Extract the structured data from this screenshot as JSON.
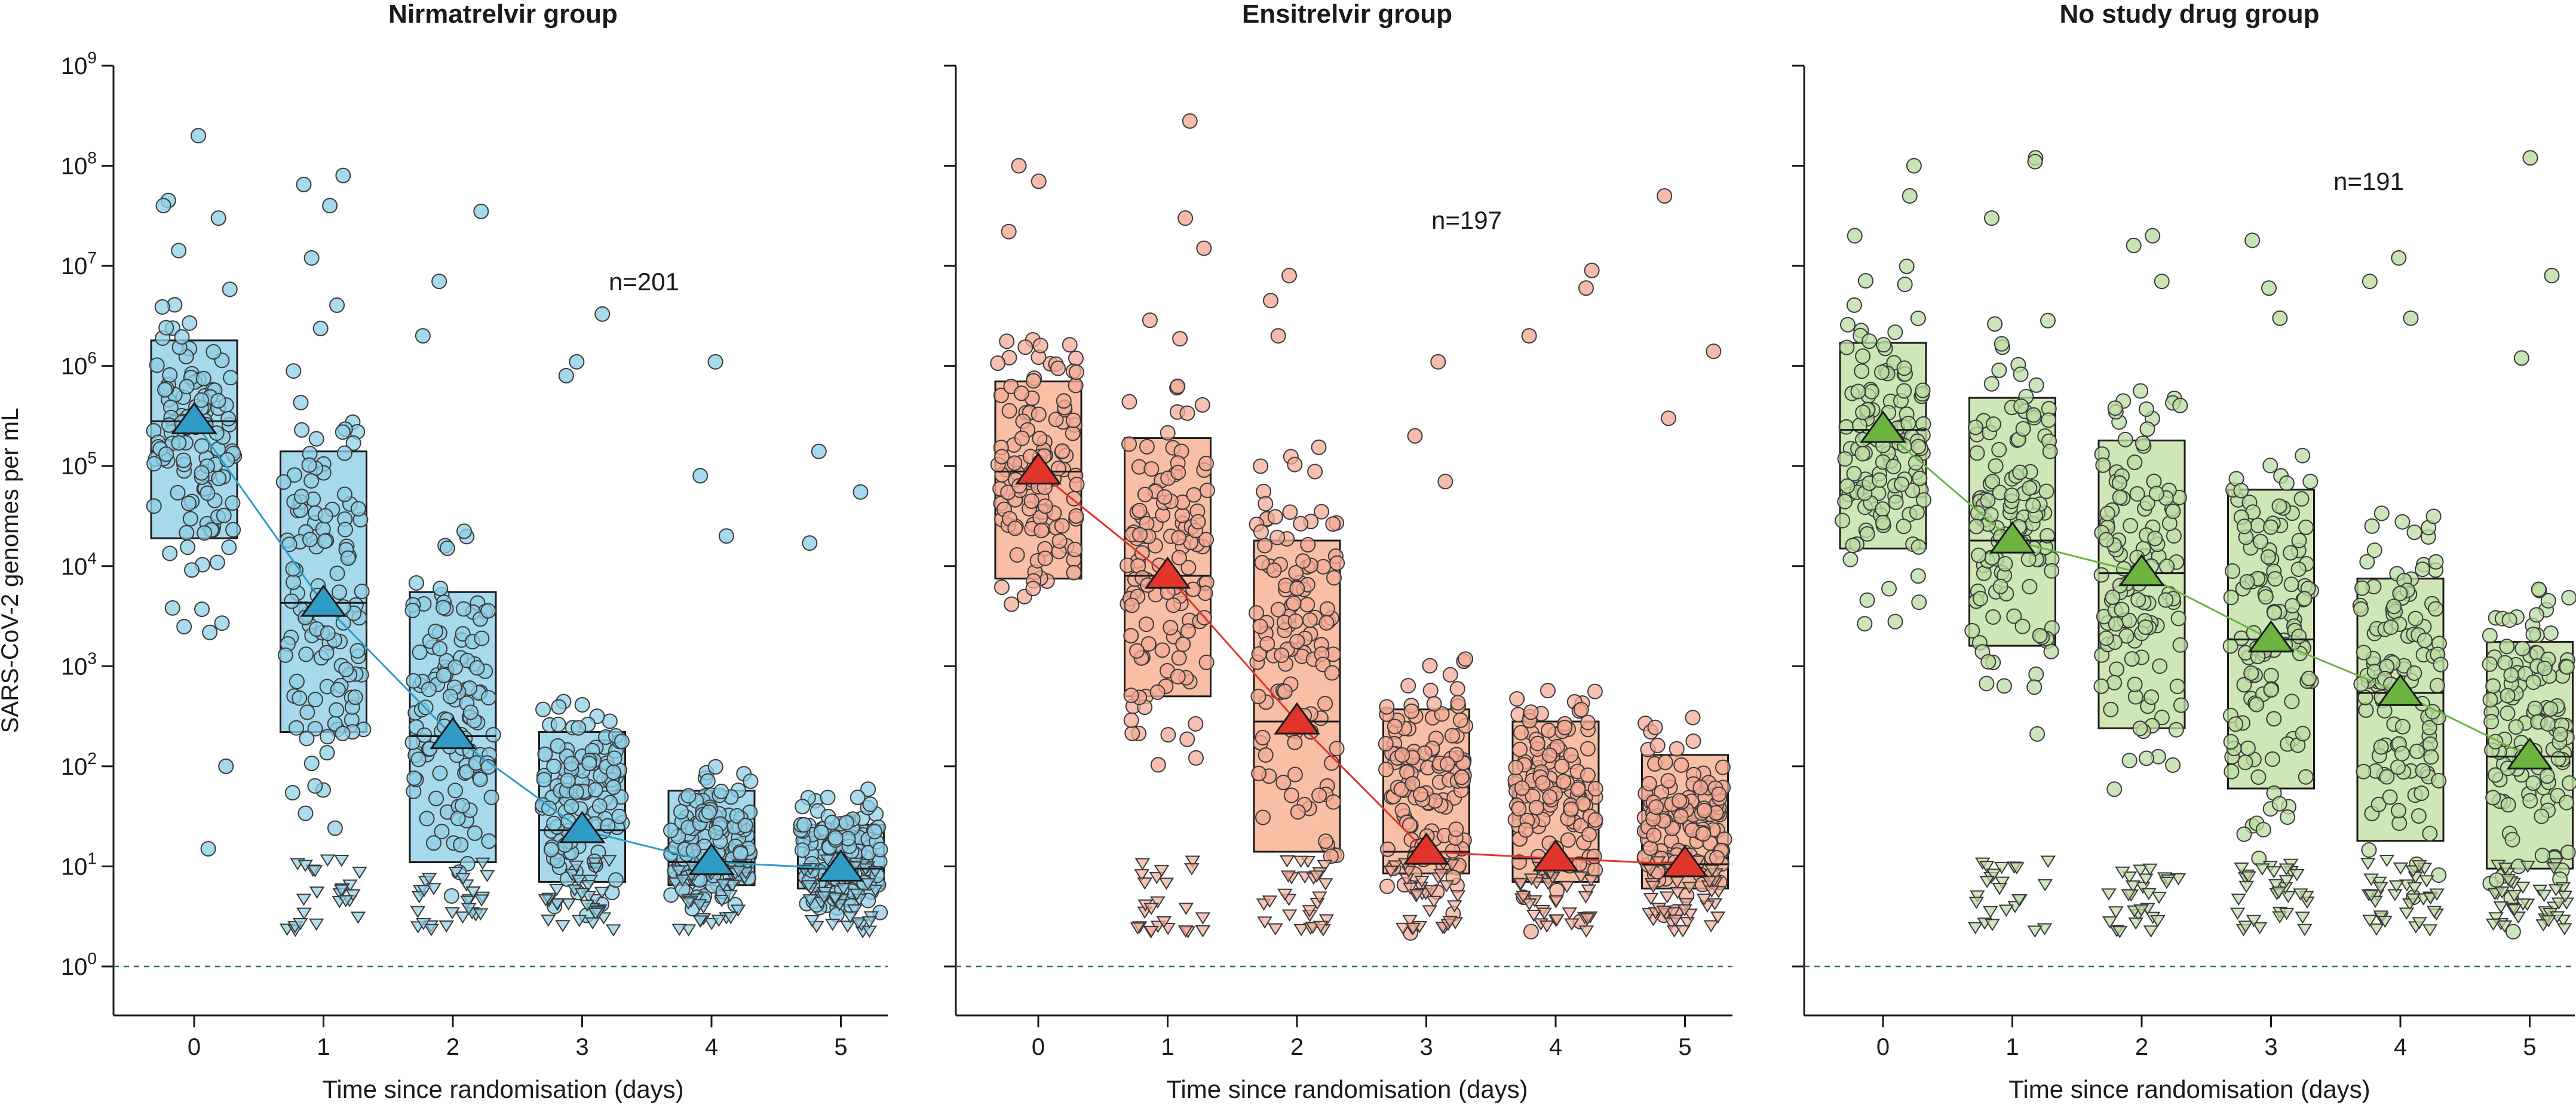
{
  "chart_data": {
    "type": "box",
    "ylabel": "SARS-CoV-2 genomes per mL",
    "yscale": "log10",
    "ylim": [
      1,
      1000000000
    ],
    "y_ticks": [
      {
        "base": "10",
        "exp": "0"
      },
      {
        "base": "10",
        "exp": "1"
      },
      {
        "base": "10",
        "exp": "2"
      },
      {
        "base": "10",
        "exp": "3"
      },
      {
        "base": "10",
        "exp": "4"
      },
      {
        "base": "10",
        "exp": "5"
      },
      {
        "base": "10",
        "exp": "6"
      },
      {
        "base": "10",
        "exp": "7"
      },
      {
        "base": "10",
        "exp": "8"
      },
      {
        "base": "10",
        "exp": "9"
      }
    ],
    "reference_line": 1,
    "xlabel": "Time since randomisation (days)",
    "categories": [
      "0",
      "1",
      "2",
      "3",
      "4",
      "5"
    ],
    "panels": [
      {
        "title": "Nirmatrelvir group",
        "n_label": "n=201",
        "fill": "#a6d9ec",
        "point_color": "#8fcfe6",
        "mean_color": "#2f9cc6",
        "line_color": "#2f9cc6",
        "boxes": [
          {
            "day": "0",
            "q1": 19000,
            "median": 280000,
            "q3": 1800000
          },
          {
            "day": "1",
            "q1": 220,
            "median": 4300,
            "q3": 140000
          },
          {
            "day": "2",
            "q1": 11,
            "median": 200,
            "q3": 5500
          },
          {
            "day": "3",
            "q1": 7,
            "median": 23,
            "q3": 220
          },
          {
            "day": "4",
            "q1": 6.5,
            "median": 11,
            "q3": 57
          },
          {
            "day": "5",
            "q1": 6,
            "median": 9.5,
            "q3": 26
          }
        ],
        "means": [
          280000,
          4200,
          200,
          23,
          11,
          9.5
        ],
        "outliers": [
          {
            "day": "0",
            "values": [
              200000000,
              45000000,
              40000000,
              30000000,
              100,
              15
            ]
          },
          {
            "day": "1",
            "values": [
              80000000,
              65000000,
              40000000,
              12000000
            ]
          },
          {
            "day": "2",
            "values": [
              35000000,
              7000000,
              2000000
            ]
          },
          {
            "day": "3",
            "values": [
              3300000,
              1100000,
              800000
            ]
          },
          {
            "day": "4",
            "values": [
              1100000,
              80000,
              20000
            ]
          },
          {
            "day": "5",
            "values": [
              140000,
              55000,
              17000
            ]
          }
        ]
      },
      {
        "title": "Ensitrelvir group",
        "n_label": "n=197",
        "fill": "#f8bfa5",
        "point_color": "#f4ab95",
        "mean_color": "#e1342a",
        "line_color": "#e1342a",
        "boxes": [
          {
            "day": "0",
            "q1": 7500,
            "median": 88000,
            "q3": 700000
          },
          {
            "day": "1",
            "q1": 500,
            "median": 8000,
            "q3": 190000
          },
          {
            "day": "2",
            "q1": 14,
            "median": 280,
            "q3": 18000
          },
          {
            "day": "3",
            "q1": 8.5,
            "median": 14,
            "q3": 370
          },
          {
            "day": "4",
            "q1": 7,
            "median": 12,
            "q3": 280
          },
          {
            "day": "5",
            "q1": 6,
            "median": 10.5,
            "q3": 130
          }
        ],
        "means": [
          88000,
          8000,
          280,
          14,
          12,
          10.5
        ],
        "outliers": [
          {
            "day": "0",
            "values": [
              100000000,
              70000000,
              22000000
            ]
          },
          {
            "day": "1",
            "values": [
              280000000,
              30000000,
              15000000
            ]
          },
          {
            "day": "2",
            "values": [
              8000000,
              4500000,
              2000000
            ]
          },
          {
            "day": "3",
            "values": [
              1100000,
              200000,
              70000
            ]
          },
          {
            "day": "4",
            "values": [
              9000000,
              6000000,
              2000000
            ]
          },
          {
            "day": "5",
            "values": [
              50000000,
              1400000,
              300000
            ]
          }
        ]
      },
      {
        "title": "No study drug group",
        "n_label": "n=191",
        "fill": "#cfe6b6",
        "point_color": "#bcdca3",
        "mean_color": "#6db33f",
        "line_color": "#6db33f",
        "boxes": [
          {
            "day": "0",
            "q1": 15000,
            "median": 230000,
            "q3": 1700000
          },
          {
            "day": "1",
            "q1": 1600,
            "median": 18000,
            "q3": 480000
          },
          {
            "day": "2",
            "q1": 240,
            "median": 8500,
            "q3": 180000
          },
          {
            "day": "3",
            "q1": 60,
            "median": 1850,
            "q3": 58000
          },
          {
            "day": "4",
            "q1": 18,
            "median": 540,
            "q3": 7500
          },
          {
            "day": "5",
            "q1": 9.5,
            "median": 125,
            "q3": 1750
          }
        ],
        "means": [
          230000,
          18000,
          8500,
          1850,
          540,
          125
        ],
        "outliers": [
          {
            "day": "0",
            "values": [
              100000000,
              50000000,
              20000000
            ]
          },
          {
            "day": "1",
            "values": [
              120000000,
              110000000,
              30000000
            ]
          },
          {
            "day": "2",
            "values": [
              20000000,
              16000000,
              7000000
            ]
          },
          {
            "day": "3",
            "values": [
              18000000,
              6000000,
              3000000
            ]
          },
          {
            "day": "4",
            "values": [
              12000000,
              7000000,
              3000000
            ]
          },
          {
            "day": "5",
            "values": [
              120000000,
              8000000,
              1200000
            ]
          }
        ]
      }
    ]
  }
}
